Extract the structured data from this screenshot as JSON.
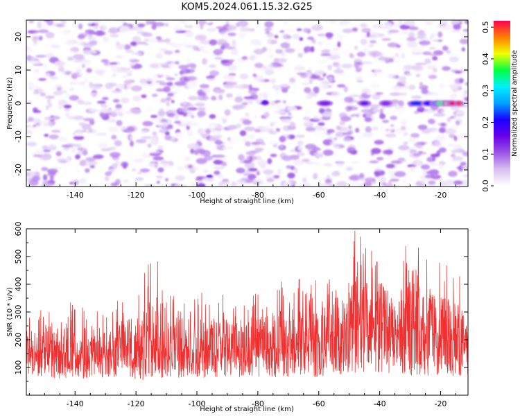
{
  "title": "KOM5.2024.061.15.32.G25",
  "chart_data": [
    {
      "type": "heatmap",
      "xlabel": "Height of straight line (km)",
      "ylabel": "Frequency (Hz)",
      "xlim": [
        -156,
        -11
      ],
      "ylim": [
        -25,
        25
      ],
      "x_ticks": [
        -140,
        -120,
        -100,
        -80,
        -60,
        -40,
        -20
      ],
      "y_ticks": [
        -20,
        -10,
        0,
        10,
        20
      ],
      "colorbar": {
        "label": "Normalized spectral amplitude",
        "range": [
          0.0,
          0.52
        ],
        "ticks": [
          0.0,
          0.1,
          0.2,
          0.3,
          0.4,
          0.5
        ],
        "colors": [
          "#ffffff",
          "#d8bff0",
          "#9b55e6",
          "#6a00e8",
          "#1a00ff",
          "#00a0ff",
          "#00f0ff",
          "#00ff40",
          "#f0ff00",
          "#ff8000",
          "#ff0050"
        ]
      },
      "notable_peak": {
        "x": -16,
        "y": 0,
        "value": 0.52
      },
      "note_values": "background amplitude mostly 0.0-0.1 across the whole area; strongest energy along 0 Hz for heights -30 to -13 km"
    },
    {
      "type": "line",
      "xlabel": "Height of straight line (km)",
      "ylabel": "SNR (10 * v/v)",
      "xlim": [
        -156,
        -11
      ],
      "ylim": [
        0,
        600
      ],
      "x_ticks": [
        -140,
        -120,
        -100,
        -80,
        -60,
        -40,
        -20
      ],
      "y_ticks": [
        100,
        200,
        300,
        400,
        500,
        600
      ],
      "series": [
        {
          "color": "#f03030",
          "x": [
            -156,
            -150,
            -140,
            -130,
            -120,
            -114,
            -110,
            -100,
            -90,
            -80,
            -75,
            -70,
            -60,
            -50,
            -48,
            -45,
            -42,
            -40,
            -35,
            -30,
            -25,
            -20,
            -15,
            -11
          ],
          "envelope_low": [
            60,
            40,
            40,
            40,
            30,
            30,
            40,
            40,
            40,
            40,
            30,
            40,
            30,
            30,
            30,
            30,
            30,
            30,
            30,
            30,
            30,
            40,
            40,
            40
          ],
          "envelope_high": [
            320,
            330,
            340,
            330,
            390,
            540,
            400,
            380,
            370,
            380,
            400,
            420,
            420,
            500,
            600,
            560,
            570,
            560,
            460,
            590,
            500,
            480,
            480,
            360
          ],
          "typical_level": [
            150,
            150,
            140,
            140,
            150,
            160,
            150,
            150,
            160,
            160,
            160,
            170,
            190,
            230,
            240,
            240,
            240,
            240,
            220,
            230,
            220,
            200,
            180,
            180
          ]
        }
      ]
    }
  ]
}
